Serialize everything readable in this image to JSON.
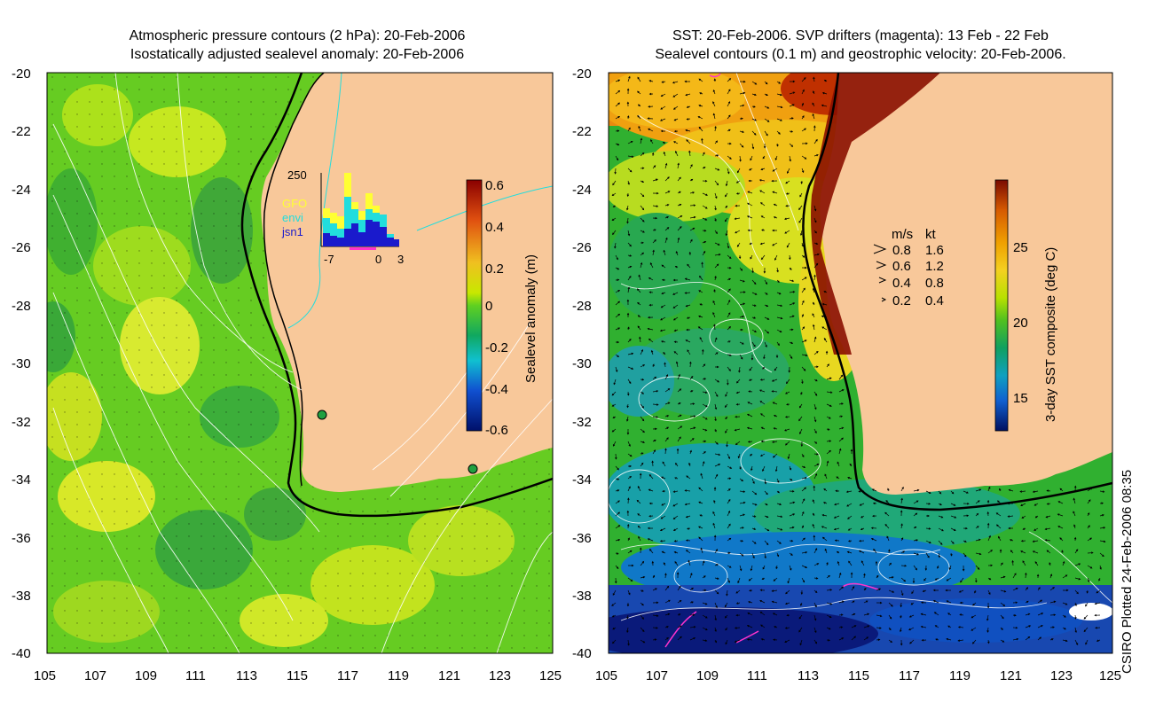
{
  "left_panel": {
    "title_line1": "Atmospheric pressure contours (2 hPa): 20-Feb-2006",
    "title_line2": "Isostatically adjusted sealevel anomaly: 20-Feb-2006",
    "colorbar": {
      "label": "Sealevel anomaly (m)",
      "ticks": [
        "0.6",
        "0.4",
        "0.2",
        "0",
        "-0.2",
        "-0.4",
        "-0.6"
      ]
    },
    "histogram": {
      "ymax_label": "250",
      "x_labels": [
        "-7",
        "0",
        "3"
      ],
      "legend": [
        {
          "label": "GFO",
          "color": "#ffff33"
        },
        {
          "label": "envi",
          "color": "#22dddd"
        },
        {
          "label": "jsn1",
          "color": "#1a1acc"
        }
      ]
    }
  },
  "right_panel": {
    "title_line1": "SST: 20-Feb-2006. SVP drifters (magenta): 13 Feb - 22 Feb",
    "title_line2": "Sealevel contours (0.1 m) and geostrophic velocity: 20-Feb-2006.",
    "colorbar": {
      "label": "3-day SST composite (deg C)",
      "ticks": [
        "25",
        "20",
        "15"
      ]
    },
    "velocity_legend": {
      "header": [
        "m/s",
        "kt"
      ],
      "rows": [
        {
          "ms": "0.8",
          "kt": "1.6"
        },
        {
          "ms": "0.6",
          "kt": "1.2"
        },
        {
          "ms": "0.4",
          "kt": "0.8"
        },
        {
          "ms": "0.2",
          "kt": "0.4"
        }
      ]
    }
  },
  "axes": {
    "lat_labels": [
      "-20",
      "-22",
      "-24",
      "-26",
      "-28",
      "-30",
      "-32",
      "-34",
      "-36",
      "-38",
      "-40"
    ],
    "lon_labels": [
      "105",
      "107",
      "109",
      "111",
      "113",
      "115",
      "117",
      "119",
      "121",
      "123",
      "125"
    ]
  },
  "credit": "CSIRO Plotted 24-Feb-2006 08:35",
  "colors": {
    "land": "#f8c89a",
    "coast": "#000000",
    "contour": "#ffffff",
    "drifter": "#ff33cc"
  }
}
